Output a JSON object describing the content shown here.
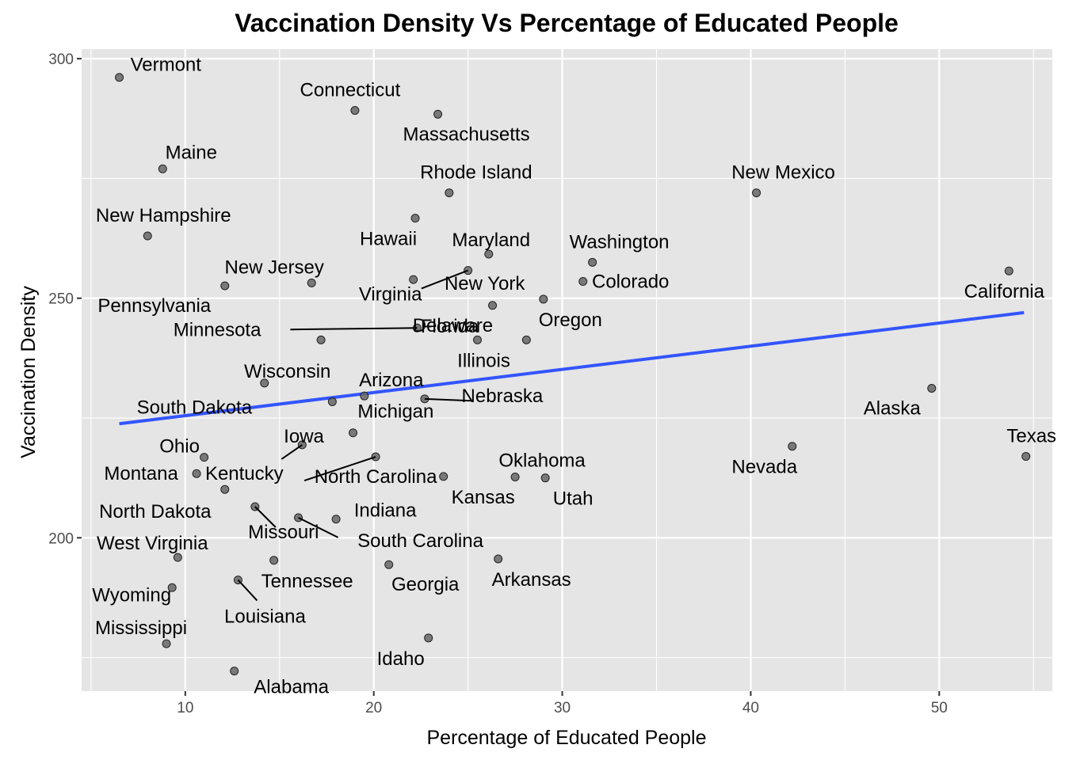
{
  "chart_data": {
    "type": "scatter",
    "title": "Vaccination Density Vs Percentage of Educated People",
    "xlabel": "Percentage of Educated People",
    "ylabel": "Vaccination Density",
    "xlim": [
      4.5,
      56
    ],
    "ylim": [
      168,
      302
    ],
    "x_ticks": [
      10,
      20,
      30,
      40,
      50
    ],
    "y_ticks": [
      200,
      250,
      300
    ],
    "grid": true,
    "background": "#e5e5e5",
    "grid_color": "#ffffff",
    "point_color": "#666666",
    "trend_color": "#3355ff",
    "trend_line": {
      "x": [
        6.5,
        54.5
      ],
      "y": [
        223.8,
        247.0
      ]
    },
    "points": [
      {
        "name": "Vermont",
        "x": 6.5,
        "y": 296.1
      },
      {
        "name": "Connecticut",
        "x": 19.0,
        "y": 289.2
      },
      {
        "name": "Massachusetts",
        "x": 23.4,
        "y": 288.4
      },
      {
        "name": "Maine",
        "x": 8.8,
        "y": 277.0
      },
      {
        "name": "Rhode Island",
        "x": 24.0,
        "y": 272.0
      },
      {
        "name": "New Mexico",
        "x": 40.3,
        "y": 272.0
      },
      {
        "name": "Hawaii",
        "x": 22.2,
        "y": 266.7
      },
      {
        "name": "New Hampshire",
        "x": 8.0,
        "y": 263.0
      },
      {
        "name": "Maryland",
        "x": 26.1,
        "y": 259.2
      },
      {
        "name": "Washington",
        "x": 31.6,
        "y": 257.5
      },
      {
        "name": "California",
        "x": 53.7,
        "y": 255.7
      },
      {
        "name": "Virginia",
        "x": 25.0,
        "y": 255.8
      },
      {
        "name": "New York",
        "x": 22.1,
        "y": 253.9
      },
      {
        "name": "New Jersey",
        "x": 16.7,
        "y": 253.2
      },
      {
        "name": "Colorado",
        "x": 31.1,
        "y": 253.5
      },
      {
        "name": "Pennsylvania",
        "x": 12.1,
        "y": 252.6
      },
      {
        "name": "Oregon",
        "x": 29.0,
        "y": 249.8
      },
      {
        "name": "Florida",
        "x": 26.3,
        "y": 248.5
      },
      {
        "name": "Delaware",
        "x": 22.3,
        "y": 243.8
      },
      {
        "name": "Minnesota",
        "x": 17.2,
        "y": 241.3
      },
      {
        "name": "Illinois",
        "x": 25.5,
        "y": 241.3
      },
      {
        "name": "Michigan",
        "x": 28.1,
        "y": 241.3
      },
      {
        "name": "Wisconsin",
        "x": 14.2,
        "y": 232.3
      },
      {
        "name": "Alaska",
        "x": 49.6,
        "y": 231.2
      },
      {
        "name": "Arizona",
        "x": 19.5,
        "y": 229.6
      },
      {
        "name": "Nebraska",
        "x": 22.7,
        "y": 229.0
      },
      {
        "name": "South Dakota",
        "x": 17.8,
        "y": 228.4
      },
      {
        "name": "Iowa",
        "x": 18.9,
        "y": 221.9
      },
      {
        "name": "Kentucky",
        "x": 16.2,
        "y": 219.4
      },
      {
        "name": "Nevada",
        "x": 42.2,
        "y": 219.1
      },
      {
        "name": "Ohio",
        "x": 11.0,
        "y": 216.8
      },
      {
        "name": "Texas",
        "x": 54.6,
        "y": 217.0
      },
      {
        "name": "North Carolina",
        "x": 20.1,
        "y": 216.9
      },
      {
        "name": "Montana",
        "x": 10.6,
        "y": 213.4
      },
      {
        "name": "Kansas",
        "x": 23.7,
        "y": 212.8
      },
      {
        "name": "Oklahoma",
        "x": 27.5,
        "y": 212.7
      },
      {
        "name": "Utah",
        "x": 29.1,
        "y": 212.5
      },
      {
        "name": "North Dakota",
        "x": 12.1,
        "y": 210.1
      },
      {
        "name": "Missouri",
        "x": 13.7,
        "y": 206.5
      },
      {
        "name": "South Carolina",
        "x": 16.0,
        "y": 204.2
      },
      {
        "name": "Indiana",
        "x": 18.0,
        "y": 203.9
      },
      {
        "name": "West Virginia",
        "x": 9.6,
        "y": 195.9
      },
      {
        "name": "Tennessee",
        "x": 14.7,
        "y": 195.3
      },
      {
        "name": "Arkansas",
        "x": 26.6,
        "y": 195.6
      },
      {
        "name": "Georgia",
        "x": 20.8,
        "y": 194.4
      },
      {
        "name": "Louisiana",
        "x": 12.8,
        "y": 191.2
      },
      {
        "name": "Wyoming",
        "x": 9.3,
        "y": 189.6
      },
      {
        "name": "Idaho",
        "x": 22.9,
        "y": 179.1
      },
      {
        "name": "Mississippi",
        "x": 9.0,
        "y": 177.9
      },
      {
        "name": "Alabama",
        "x": 12.6,
        "y": 172.2
      }
    ]
  }
}
